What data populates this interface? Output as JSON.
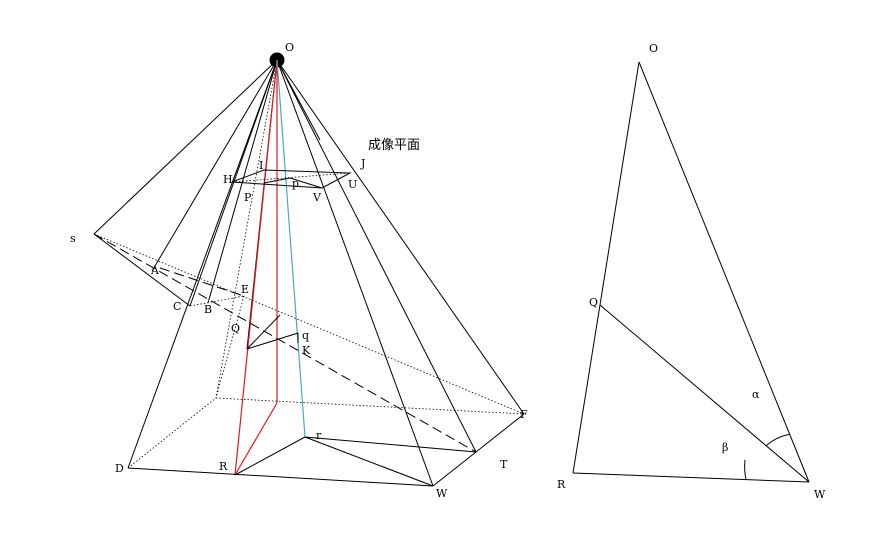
{
  "colors": {
    "red_ray": "#e0191e",
    "cyan_ray": "#4aa8bd",
    "ink": "#000000"
  },
  "left_figure": {
    "caption": "成像平面",
    "labels": {
      "O": "O",
      "J": "J",
      "H": "H",
      "I": "I",
      "p": "p",
      "U": "U",
      "P": "P",
      "V": "V",
      "s": "s",
      "A": "A",
      "E": "E",
      "C": "C",
      "B": "B",
      "Q": "Q",
      "q": "q",
      "K": "K",
      "F": "F",
      "r": "r",
      "T": "T",
      "D": "D",
      "R": "R",
      "W": "W"
    }
  },
  "right_figure": {
    "labels": {
      "O": "O",
      "Q": "Q",
      "R": "R",
      "W": "W",
      "alpha": "α",
      "beta": "β"
    }
  }
}
